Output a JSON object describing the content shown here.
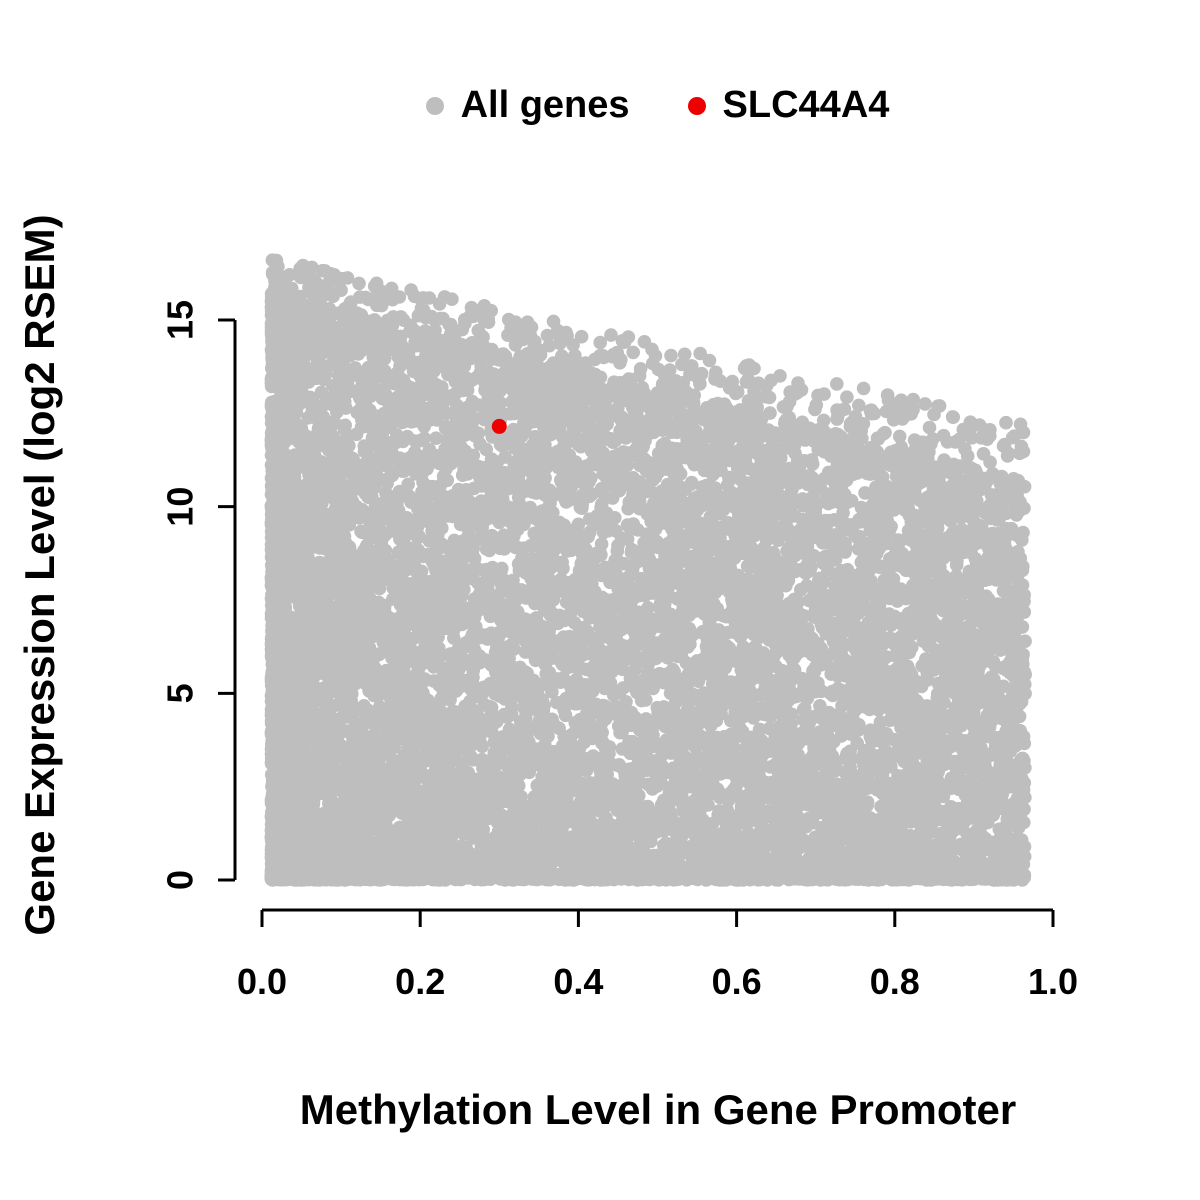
{
  "legend": {
    "items": [
      {
        "label": "All genes",
        "color": "#bebebe"
      },
      {
        "label": "SLC44A4",
        "color": "#ee0000"
      }
    ]
  },
  "axes": {
    "x": {
      "label": "Methylation Level in Gene Promoter",
      "tick_labels": [
        "0.0",
        "0.2",
        "0.4",
        "0.6",
        "0.8",
        "1.0"
      ],
      "tick_values": [
        0,
        0.2,
        0.4,
        0.6,
        0.8,
        1.0
      ]
    },
    "y": {
      "label": "Gene Expression Level (log2 RSEM)",
      "tick_labels": [
        "0",
        "5",
        "10",
        "15"
      ],
      "tick_values": [
        0,
        5,
        10,
        15
      ]
    }
  },
  "chart_data": {
    "type": "scatter",
    "title": "",
    "xlabel": "Methylation Level in Gene Promoter",
    "ylabel": "Gene Expression Level (log2 RSEM)",
    "xlim": [
      0,
      1.0
    ],
    "ylim": [
      0,
      16.8
    ],
    "grid": false,
    "legend_position": "top-center",
    "series": [
      {
        "name": "All genes",
        "color": "#bebebe",
        "style": "dense_cloud",
        "generator": {
          "n_points": 12000,
          "seed": 42,
          "x_min": 0.012,
          "x_max": 0.965,
          "upper_envelope_intercept": 16.7,
          "upper_envelope_slope": -4.6,
          "dense_envelope_intercept": 15.8,
          "dense_envelope_slope": -5.3,
          "baseline_fraction": 0.105,
          "sparse_top_fraction": 0.055,
          "y_power": 1.25
        }
      },
      {
        "name": "SLC44A4",
        "color": "#ee0000",
        "points": [
          [
            0.3,
            12.15
          ]
        ]
      }
    ]
  }
}
